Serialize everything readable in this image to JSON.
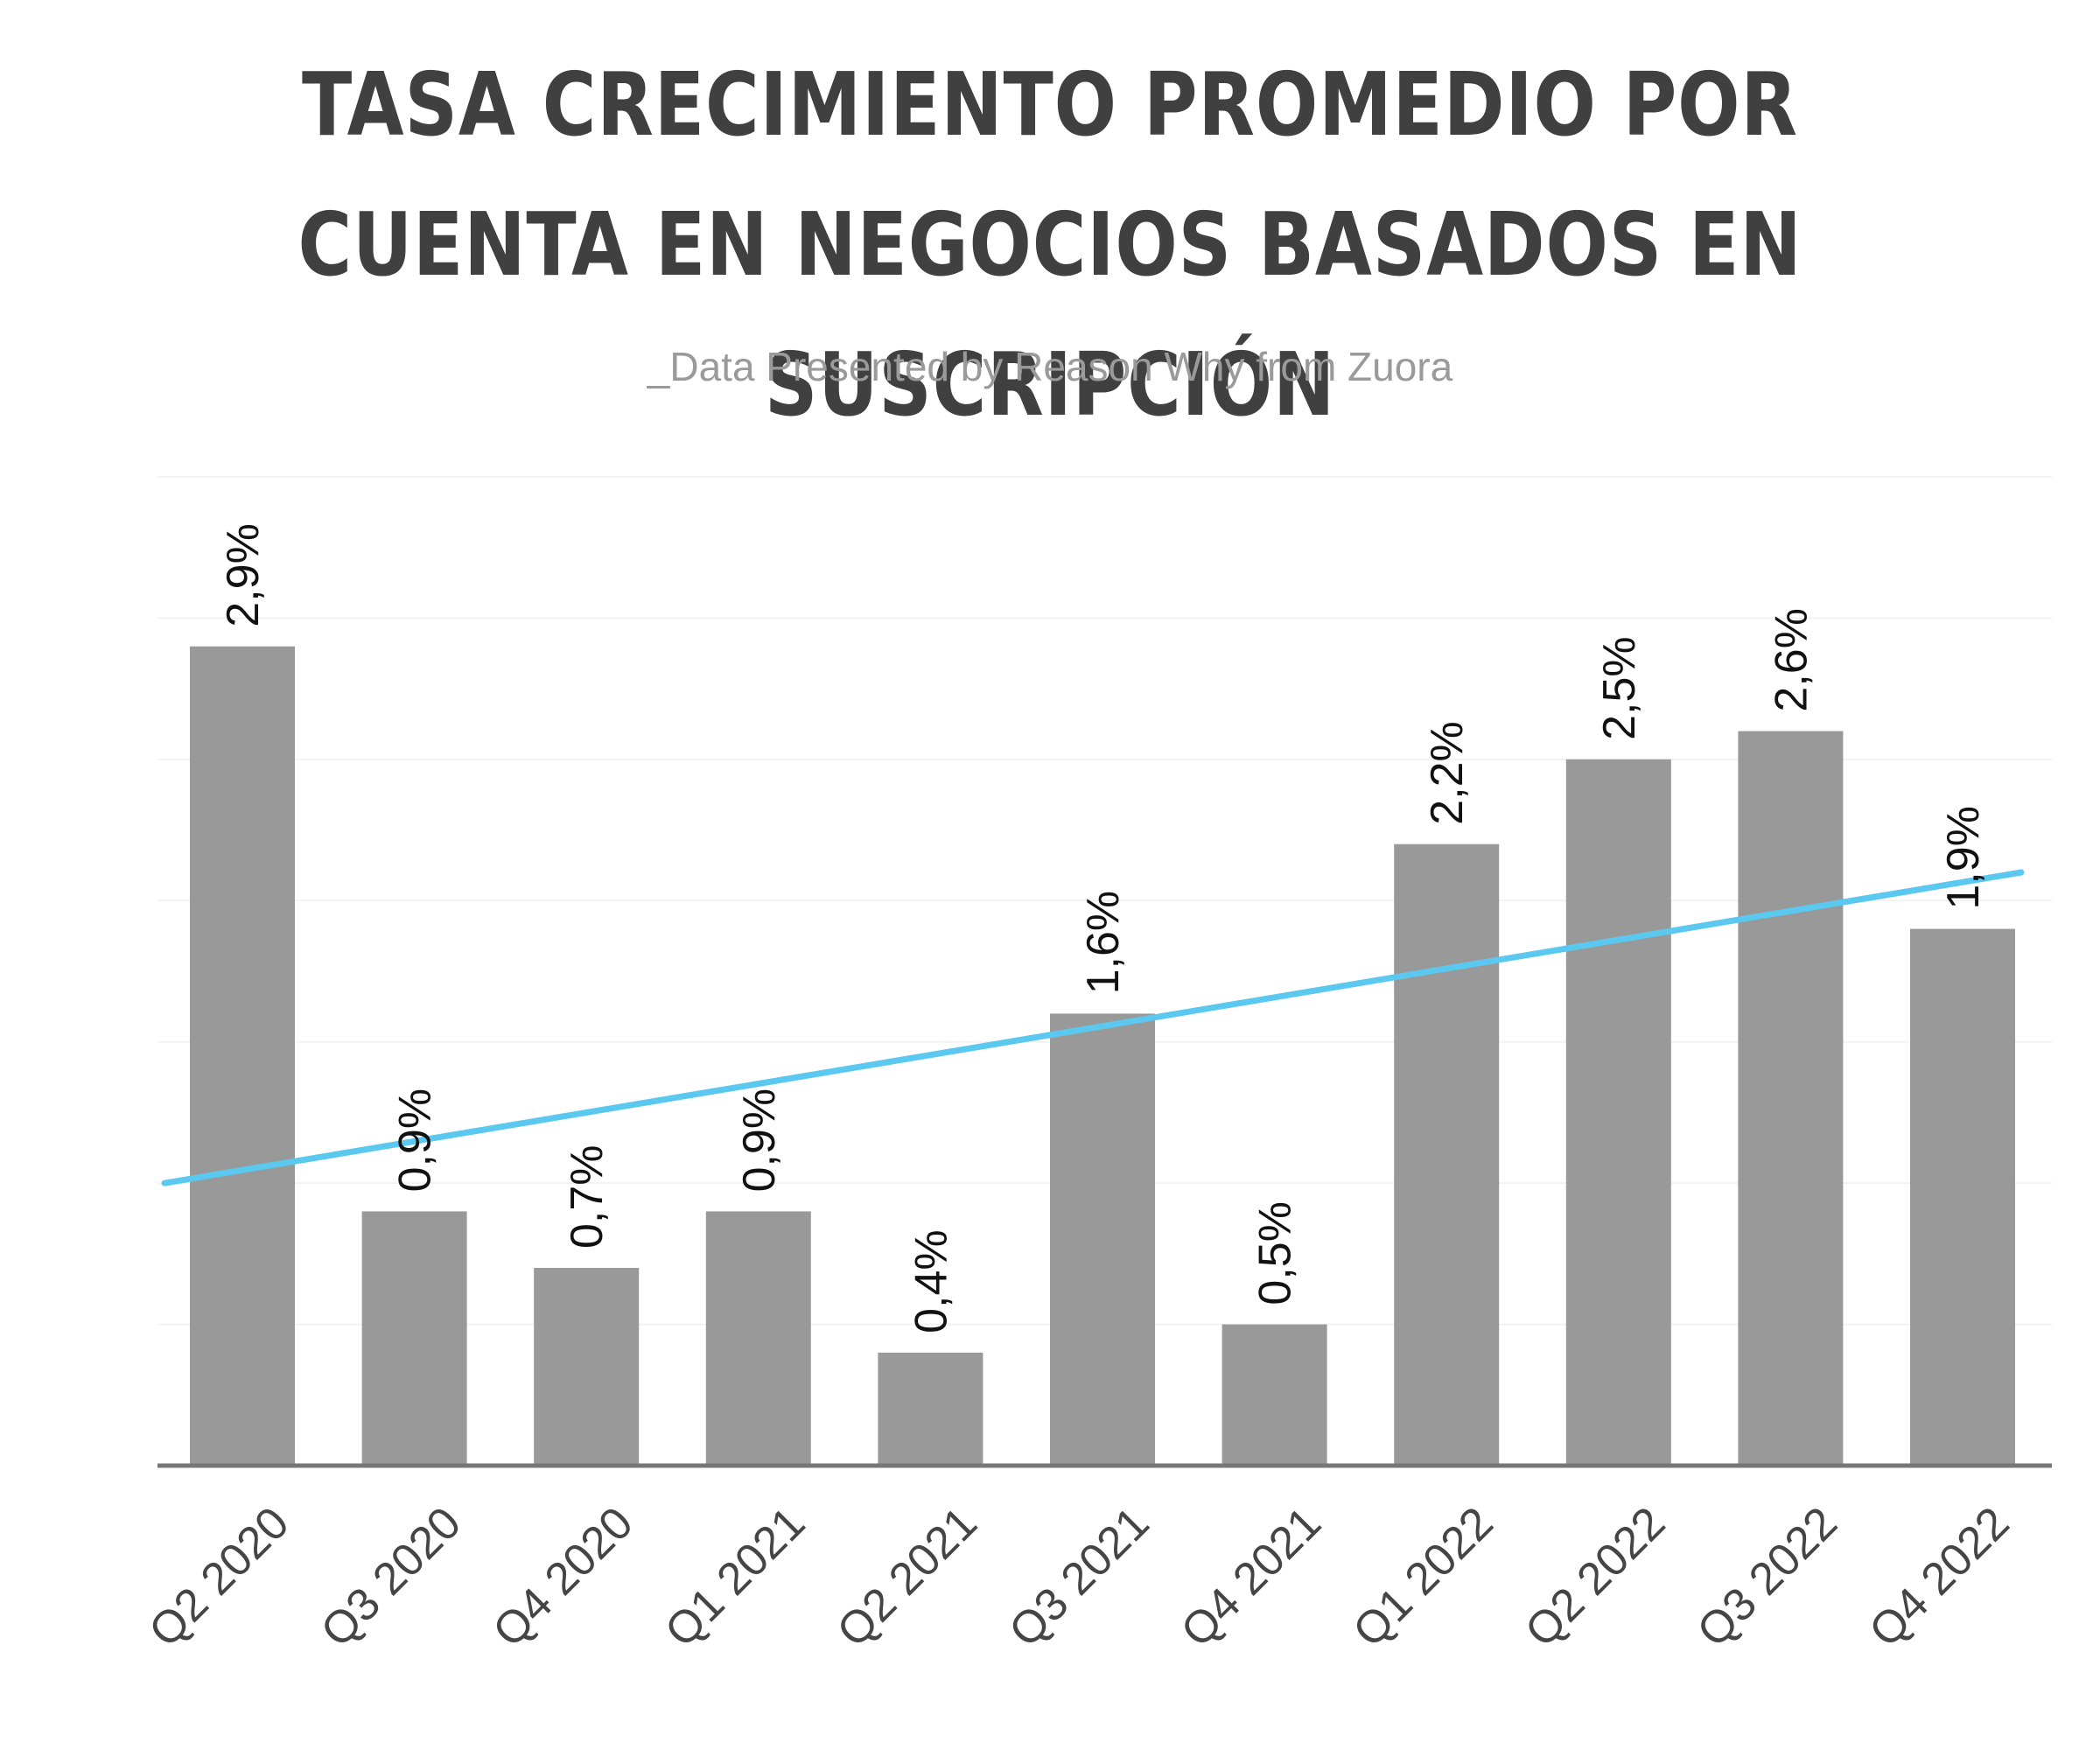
{
  "chart_data": {
    "type": "bar",
    "title": "TASA CRECIMIENTO PROMEDIO POR CUENTA EN NEGOCIOS BASADOS EN SUSCRIPCIÓN",
    "subtitle": "_Data Presented by Reason Why from Zuora",
    "categories": [
      "Q2 2020",
      "Q3 2020",
      "Q4 2020",
      "Q1 2021",
      "Q2 2021",
      "Q3 2021",
      "Q4 2021",
      "Q1 2022",
      "Q2 2022",
      "Q3 2022",
      "Q4 2022"
    ],
    "values": [
      2.9,
      0.9,
      0.7,
      0.9,
      0.4,
      1.6,
      0.5,
      2.2,
      2.5,
      2.6,
      1.9
    ],
    "data_labels": [
      "2,9%",
      "0,9%",
      "0,7%",
      "0,9%",
      "0,4%",
      "1,6%",
      "0,5%",
      "2,2%",
      "2,5%",
      "2,6%",
      "1,9%"
    ],
    "trendline": {
      "type": "linear",
      "start_value": 1.0,
      "end_value": 2.1
    },
    "ylim": [
      0,
      3.5
    ],
    "grid": true,
    "colors": {
      "bar": "#999999",
      "trendline": "#5bc8f0",
      "axis": "#777777",
      "grid": "#f2f2f2"
    }
  }
}
